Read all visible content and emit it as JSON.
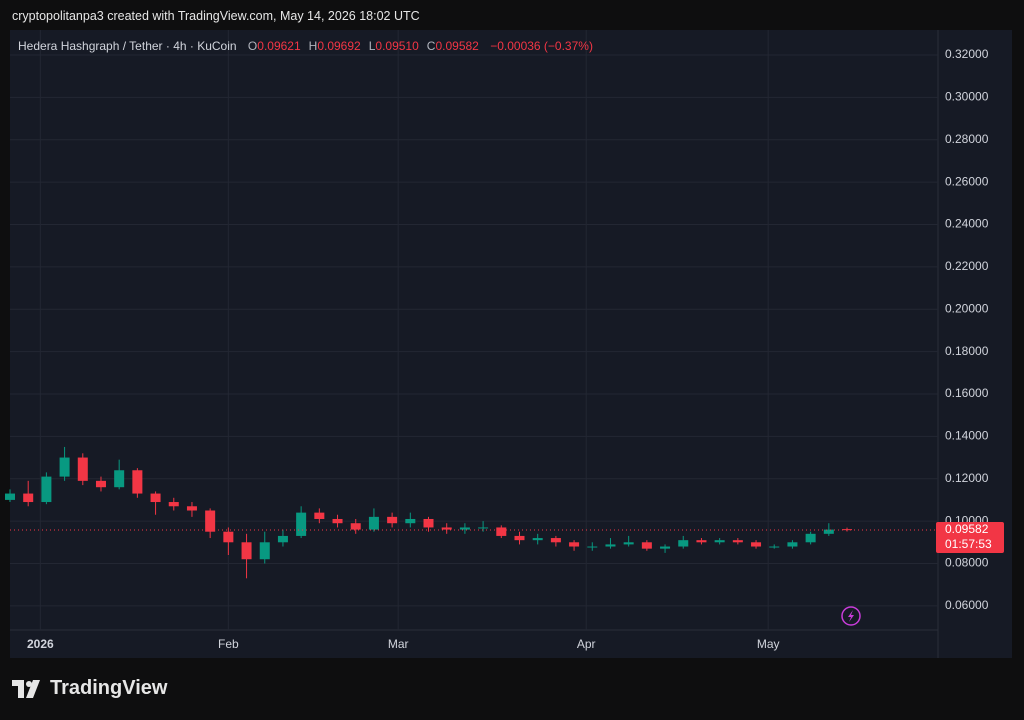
{
  "header": "cryptopolitanpa3 created with TradingView.com, May 14, 2026 18:02 UTC",
  "legend": {
    "symbol": "Hedera Hashgraph / Tether · 4h · KuCoin",
    "items": [
      {
        "key": "O",
        "value": "0.09621"
      },
      {
        "key": "H",
        "value": "0.09692"
      },
      {
        "key": "L",
        "value": "0.09510"
      },
      {
        "key": "C",
        "value": "0.09582"
      }
    ],
    "change": "−0.00036 (−0.37%)"
  },
  "chart_data": {
    "type": "candlestick",
    "x": [
      "2025-12-27",
      "2025-12-30",
      "2026-01-02",
      "2026-01-05",
      "2026-01-08",
      "2026-01-11",
      "2026-01-14",
      "2026-01-17",
      "2026-01-20",
      "2026-01-23",
      "2026-01-26",
      "2026-01-29",
      "2026-02-01",
      "2026-02-04",
      "2026-02-07",
      "2026-02-10",
      "2026-02-13",
      "2026-02-16",
      "2026-02-19",
      "2026-02-22",
      "2026-02-25",
      "2026-02-28",
      "2026-03-03",
      "2026-03-06",
      "2026-03-09",
      "2026-03-12",
      "2026-03-15",
      "2026-03-18",
      "2026-03-21",
      "2026-03-24",
      "2026-03-27",
      "2026-03-30",
      "2026-04-02",
      "2026-04-05",
      "2026-04-08",
      "2026-04-11",
      "2026-04-14",
      "2026-04-17",
      "2026-04-20",
      "2026-04-23",
      "2026-04-26",
      "2026-04-29",
      "2026-05-02",
      "2026-05-05",
      "2026-05-08",
      "2026-05-11",
      "2026-05-14"
    ],
    "open": [
      0.11,
      0.113,
      0.109,
      0.121,
      0.13,
      0.119,
      0.116,
      0.124,
      0.113,
      0.109,
      0.107,
      0.105,
      0.095,
      0.09,
      0.082,
      0.09,
      0.093,
      0.104,
      0.101,
      0.099,
      0.096,
      0.102,
      0.099,
      0.101,
      0.097,
      0.096,
      0.097,
      0.097,
      0.093,
      0.091,
      0.092,
      0.09,
      0.088,
      0.088,
      0.089,
      0.09,
      0.087,
      0.088,
      0.091,
      0.09,
      0.091,
      0.09,
      0.088,
      0.088,
      0.09,
      0.094,
      0.09621
    ],
    "high": [
      0.115,
      0.119,
      0.123,
      0.135,
      0.132,
      0.121,
      0.129,
      0.125,
      0.114,
      0.111,
      0.109,
      0.106,
      0.097,
      0.094,
      0.095,
      0.096,
      0.107,
      0.106,
      0.103,
      0.101,
      0.106,
      0.104,
      0.104,
      0.102,
      0.099,
      0.099,
      0.1,
      0.098,
      0.095,
      0.094,
      0.093,
      0.091,
      0.09,
      0.092,
      0.093,
      0.091,
      0.089,
      0.093,
      0.092,
      0.092,
      0.092,
      0.091,
      0.089,
      0.091,
      0.095,
      0.099,
      0.09692
    ],
    "low": [
      0.109,
      0.107,
      0.108,
      0.119,
      0.117,
      0.114,
      0.115,
      0.111,
      0.103,
      0.105,
      0.102,
      0.092,
      0.084,
      0.073,
      0.08,
      0.088,
      0.092,
      0.099,
      0.097,
      0.094,
      0.095,
      0.097,
      0.097,
      0.095,
      0.094,
      0.094,
      0.095,
      0.092,
      0.089,
      0.089,
      0.088,
      0.086,
      0.086,
      0.087,
      0.088,
      0.086,
      0.085,
      0.087,
      0.089,
      0.089,
      0.089,
      0.087,
      0.087,
      0.087,
      0.089,
      0.093,
      0.0951
    ],
    "close": [
      0.113,
      0.109,
      0.121,
      0.13,
      0.119,
      0.116,
      0.124,
      0.113,
      0.109,
      0.107,
      0.105,
      0.095,
      0.09,
      0.082,
      0.09,
      0.093,
      0.104,
      0.101,
      0.099,
      0.096,
      0.102,
      0.099,
      0.101,
      0.097,
      0.096,
      0.097,
      0.097,
      0.093,
      0.091,
      0.092,
      0.09,
      0.088,
      0.088,
      0.089,
      0.09,
      0.087,
      0.088,
      0.091,
      0.09,
      0.091,
      0.09,
      0.088,
      0.088,
      0.09,
      0.094,
      0.096,
      0.09582
    ],
    "up_color": "#089981",
    "down_color": "#f23645",
    "xlim": [
      "2025-12-27",
      "2026-05-29"
    ],
    "xticks": [
      {
        "value": "2026-01-01",
        "label": "2026"
      },
      {
        "value": "2026-02-01",
        "label": "Feb"
      },
      {
        "value": "2026-03-01",
        "label": "Mar"
      },
      {
        "value": "2026-04-01",
        "label": "Apr"
      },
      {
        "value": "2026-05-01",
        "label": "May"
      }
    ],
    "ylim": [
      0.0486,
      0.3318
    ],
    "yticks": [
      {
        "value": 0.06,
        "label": "0.06000"
      },
      {
        "value": 0.08,
        "label": "0.08000"
      },
      {
        "value": 0.1,
        "label": "0.10000"
      },
      {
        "value": 0.12,
        "label": "0.12000"
      },
      {
        "value": 0.14,
        "label": "0.14000"
      },
      {
        "value": 0.16,
        "label": "0.16000"
      },
      {
        "value": 0.18,
        "label": "0.18000"
      },
      {
        "value": 0.2,
        "label": "0.20000"
      },
      {
        "value": 0.22,
        "label": "0.22000"
      },
      {
        "value": 0.24,
        "label": "0.24000"
      },
      {
        "value": 0.26,
        "label": "0.26000"
      },
      {
        "value": 0.28,
        "label": "0.28000"
      },
      {
        "value": 0.3,
        "label": "0.30000"
      },
      {
        "value": 0.32,
        "label": "0.32000"
      }
    ],
    "grid": true,
    "last_price": {
      "value": 0.09582,
      "label": "0.09582"
    },
    "countdown": "01:57:53"
  },
  "logo": "TradingView"
}
